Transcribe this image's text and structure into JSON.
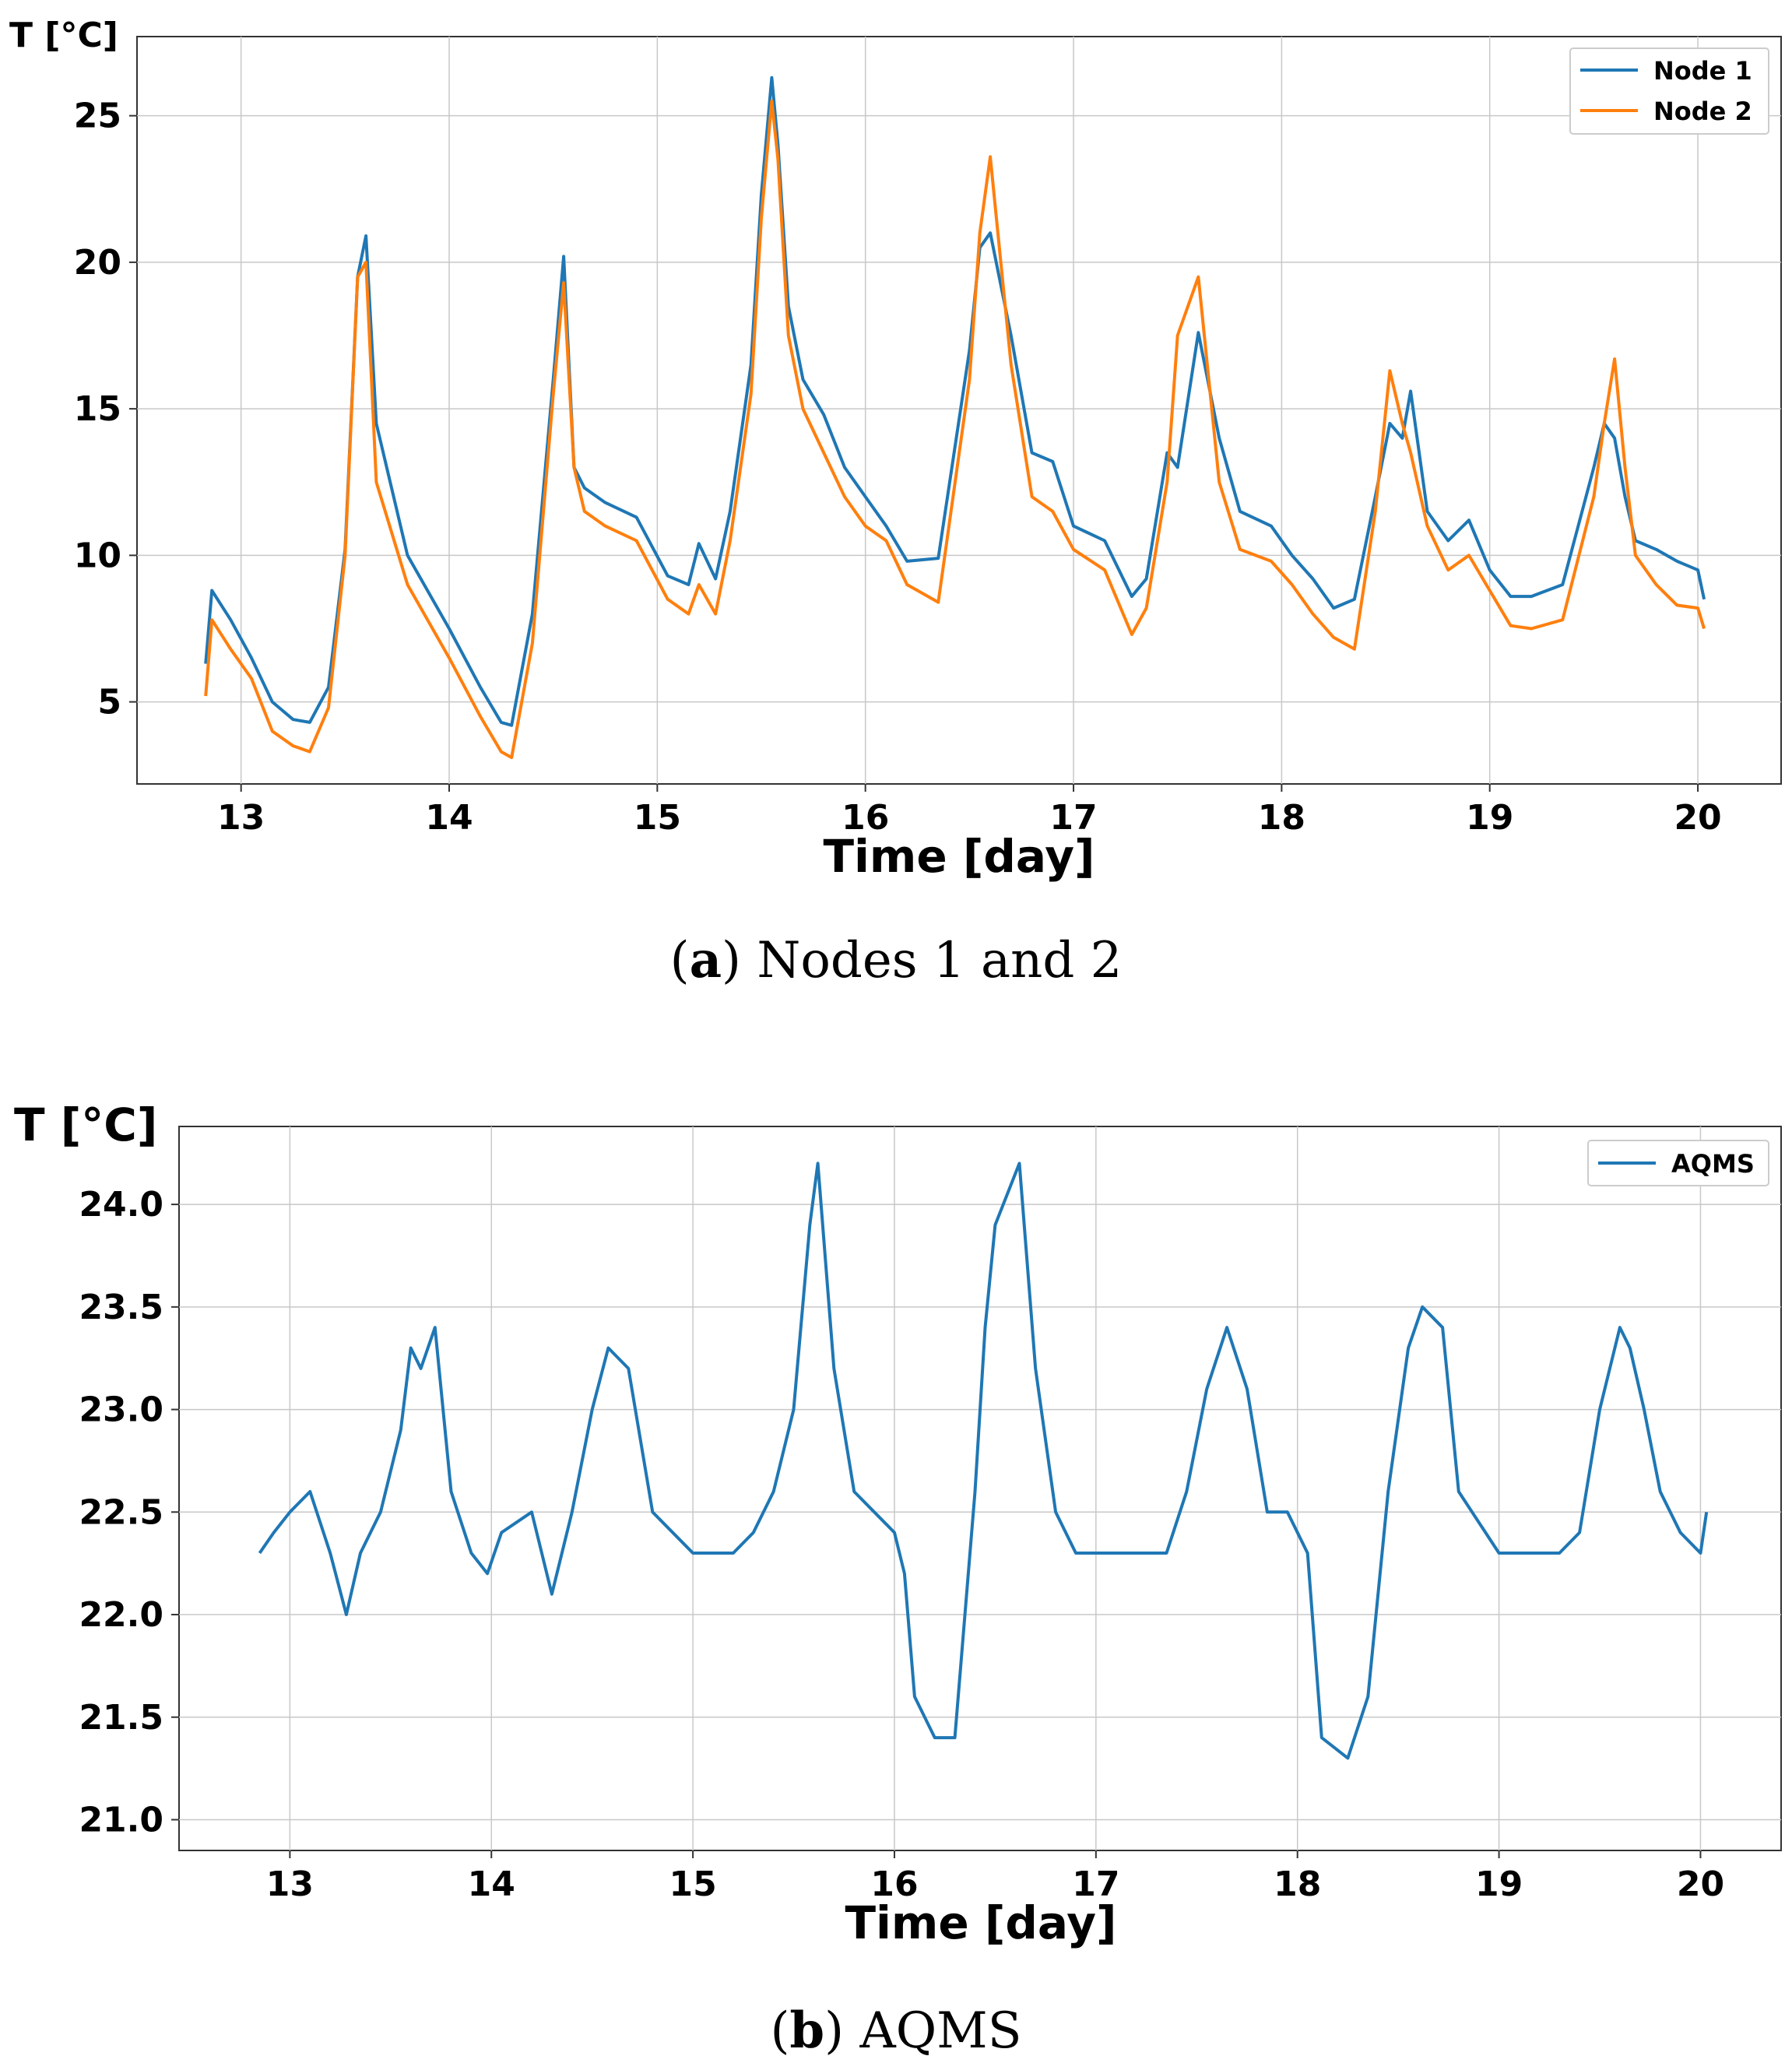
{
  "colors": {
    "node1": "#1f77b4",
    "node2": "#ff7f0e",
    "aqms": "#1f77b4"
  },
  "chart_data": [
    {
      "type": "line",
      "id": "a",
      "caption_label": "a",
      "caption_text": "Nodes 1 and 2",
      "xlabel": "Time [day]",
      "ylabel": "T [°C]",
      "xlim": [
        12.5,
        20.4
      ],
      "ylim": [
        2.2,
        27.7
      ],
      "xticks": [
        13,
        14,
        15,
        16,
        17,
        18,
        19,
        20
      ],
      "yticks": [
        5,
        10,
        15,
        20,
        25
      ],
      "ytick_labels": [
        "5",
        "10",
        "15",
        "20",
        "25"
      ],
      "legend": "top-right",
      "series": [
        {
          "name": "Node 1",
          "color": "#1f77b4",
          "x": [
            12.83,
            12.86,
            12.95,
            13.05,
            13.15,
            13.25,
            13.33,
            13.42,
            13.5,
            13.56,
            13.6,
            13.65,
            13.8,
            14.0,
            14.15,
            14.25,
            14.3,
            14.4,
            14.5,
            14.55,
            14.6,
            14.65,
            14.75,
            14.9,
            15.05,
            15.15,
            15.2,
            15.28,
            15.35,
            15.45,
            15.5,
            15.55,
            15.58,
            15.63,
            15.7,
            15.8,
            15.9,
            16.0,
            16.1,
            16.2,
            16.35,
            16.5,
            16.55,
            16.6,
            16.7,
            16.8,
            16.9,
            17.0,
            17.15,
            17.28,
            17.35,
            17.45,
            17.5,
            17.6,
            17.7,
            17.8,
            17.95,
            18.05,
            18.15,
            18.25,
            18.35,
            18.45,
            18.52,
            18.58,
            18.62,
            18.7,
            18.8,
            18.9,
            19.0,
            19.1,
            19.2,
            19.35,
            19.5,
            19.55,
            19.6,
            19.65,
            19.7,
            19.8,
            19.9,
            20.0,
            20.03
          ],
          "values": [
            6.3,
            8.8,
            7.8,
            6.5,
            5.0,
            4.4,
            4.3,
            5.5,
            10.2,
            19.5,
            20.9,
            14.5,
            10.0,
            7.5,
            5.5,
            4.3,
            4.2,
            8.0,
            16.0,
            20.2,
            13.0,
            12.3,
            11.8,
            11.3,
            9.3,
            9.0,
            10.4,
            9.2,
            11.5,
            16.5,
            22.3,
            26.3,
            24.0,
            18.5,
            16.0,
            14.8,
            13.0,
            12.0,
            11.0,
            9.8,
            9.9,
            17.0,
            20.5,
            21.0,
            17.5,
            13.5,
            13.2,
            11.0,
            10.5,
            8.6,
            9.2,
            13.5,
            13.0,
            17.6,
            14.0,
            11.5,
            11.0,
            10.0,
            9.2,
            8.2,
            8.5,
            12.0,
            14.5,
            14.0,
            15.6,
            11.5,
            10.5,
            11.2,
            9.5,
            8.6,
            8.6,
            9.0,
            13.0,
            14.5,
            14.0,
            12.0,
            10.5,
            10.2,
            9.8,
            9.5,
            8.5
          ]
        },
        {
          "name": "Node 2",
          "color": "#ff7f0e",
          "x": [
            12.83,
            12.86,
            12.95,
            13.05,
            13.15,
            13.25,
            13.33,
            13.42,
            13.5,
            13.56,
            13.6,
            13.65,
            13.8,
            14.0,
            14.15,
            14.25,
            14.3,
            14.4,
            14.5,
            14.55,
            14.6,
            14.65,
            14.75,
            14.9,
            15.05,
            15.15,
            15.2,
            15.28,
            15.35,
            15.45,
            15.5,
            15.55,
            15.58,
            15.63,
            15.7,
            15.8,
            15.9,
            16.0,
            16.1,
            16.2,
            16.35,
            16.5,
            16.55,
            16.6,
            16.7,
            16.8,
            16.9,
            17.0,
            17.15,
            17.28,
            17.35,
            17.45,
            17.5,
            17.6,
            17.7,
            17.8,
            17.95,
            18.05,
            18.15,
            18.25,
            18.35,
            18.45,
            18.52,
            18.58,
            18.62,
            18.7,
            18.8,
            18.9,
            19.0,
            19.1,
            19.2,
            19.35,
            19.5,
            19.55,
            19.6,
            19.65,
            19.7,
            19.8,
            19.9,
            20.0,
            20.03
          ],
          "values": [
            5.2,
            7.8,
            6.8,
            5.8,
            4.0,
            3.5,
            3.3,
            4.8,
            10.0,
            19.5,
            20.0,
            12.5,
            9.0,
            6.5,
            4.5,
            3.3,
            3.1,
            7.0,
            15.5,
            19.3,
            13.0,
            11.5,
            11.0,
            10.5,
            8.5,
            8.0,
            9.0,
            8.0,
            10.5,
            15.5,
            21.5,
            25.5,
            23.5,
            17.5,
            15.0,
            13.5,
            12.0,
            11.0,
            10.5,
            9.0,
            8.4,
            16.0,
            21.0,
            23.6,
            16.5,
            12.0,
            11.5,
            10.2,
            9.5,
            7.3,
            8.2,
            12.5,
            17.5,
            19.5,
            12.5,
            10.2,
            9.8,
            9.0,
            8.0,
            7.2,
            6.8,
            11.5,
            16.3,
            14.5,
            13.5,
            11.0,
            9.5,
            10.0,
            8.8,
            7.6,
            7.5,
            7.8,
            12.0,
            14.5,
            16.7,
            13.0,
            10.0,
            9.0,
            8.3,
            8.2,
            7.5
          ]
        }
      ]
    },
    {
      "type": "line",
      "id": "b",
      "caption_label": "b",
      "caption_text": "AQMS",
      "xlabel": "Time [day]",
      "ylabel": "T [°C]",
      "xlim": [
        12.45,
        20.4
      ],
      "ylim": [
        20.85,
        24.38
      ],
      "xticks": [
        13,
        14,
        15,
        16,
        17,
        18,
        19,
        20
      ],
      "yticks": [
        21.0,
        21.5,
        22.0,
        22.5,
        23.0,
        23.5,
        24.0
      ],
      "ytick_labels": [
        "21.0",
        "21.5",
        "22.0",
        "22.5",
        "23.0",
        "23.5",
        "24.0"
      ],
      "legend": "top-right",
      "series": [
        {
          "name": "AQMS",
          "color": "#1f77b4",
          "x": [
            12.85,
            12.92,
            13.0,
            13.1,
            13.2,
            13.28,
            13.35,
            13.45,
            13.55,
            13.6,
            13.65,
            13.72,
            13.8,
            13.9,
            13.98,
            14.05,
            14.2,
            14.3,
            14.4,
            14.5,
            14.58,
            14.68,
            14.8,
            15.0,
            15.2,
            15.3,
            15.4,
            15.5,
            15.58,
            15.62,
            15.7,
            15.8,
            15.9,
            16.0,
            16.05,
            16.1,
            16.2,
            16.3,
            16.4,
            16.45,
            16.5,
            16.62,
            16.7,
            16.8,
            16.9,
            17.0,
            17.2,
            17.35,
            17.45,
            17.55,
            17.65,
            17.75,
            17.85,
            17.95,
            18.05,
            18.12,
            18.25,
            18.35,
            18.45,
            18.55,
            18.62,
            18.72,
            18.8,
            19.0,
            19.2,
            19.3,
            19.4,
            19.5,
            19.6,
            19.65,
            19.72,
            19.8,
            19.9,
            20.0,
            20.03
          ],
          "values": [
            22.3,
            22.4,
            22.5,
            22.6,
            22.3,
            22.0,
            22.3,
            22.5,
            22.9,
            23.3,
            23.2,
            23.4,
            22.6,
            22.3,
            22.2,
            22.4,
            22.5,
            22.1,
            22.5,
            23.0,
            23.3,
            23.2,
            22.5,
            22.3,
            22.3,
            22.4,
            22.6,
            23.0,
            23.9,
            24.2,
            23.2,
            22.6,
            22.5,
            22.4,
            22.2,
            21.6,
            21.4,
            21.4,
            22.6,
            23.4,
            23.9,
            24.2,
            23.2,
            22.5,
            22.3,
            22.3,
            22.3,
            22.3,
            22.6,
            23.1,
            23.4,
            23.1,
            22.5,
            22.5,
            22.3,
            21.4,
            21.3,
            21.6,
            22.6,
            23.3,
            23.5,
            23.4,
            22.6,
            22.3,
            22.3,
            22.3,
            22.4,
            23.0,
            23.4,
            23.3,
            23.0,
            22.6,
            22.4,
            22.3,
            22.5
          ]
        }
      ]
    }
  ]
}
